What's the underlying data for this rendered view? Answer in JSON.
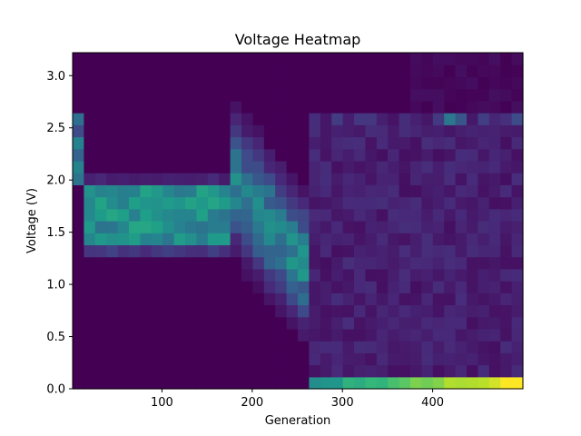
{
  "chart_data": {
    "type": "heatmap",
    "title": "Voltage Heatmap",
    "xlabel": "Generation",
    "ylabel": "Voltage (V)",
    "xlim": [
      1,
      500
    ],
    "ylim": [
      0,
      3.22
    ],
    "xticks": [
      100,
      200,
      300,
      400
    ],
    "yticks": [
      0.0,
      0.5,
      1.0,
      1.5,
      2.0,
      2.5,
      3.0
    ],
    "ytick_labels": [
      "0.0",
      "0.5",
      "1.0",
      "1.5",
      "2.0",
      "2.5",
      "3.0"
    ],
    "n_x_bins": 40,
    "n_y_bins": 28,
    "colormap": "viridis",
    "description": "Intensity (0-1) = fraction of population at a given voltage per generation bin, approximated from the image"
  }
}
